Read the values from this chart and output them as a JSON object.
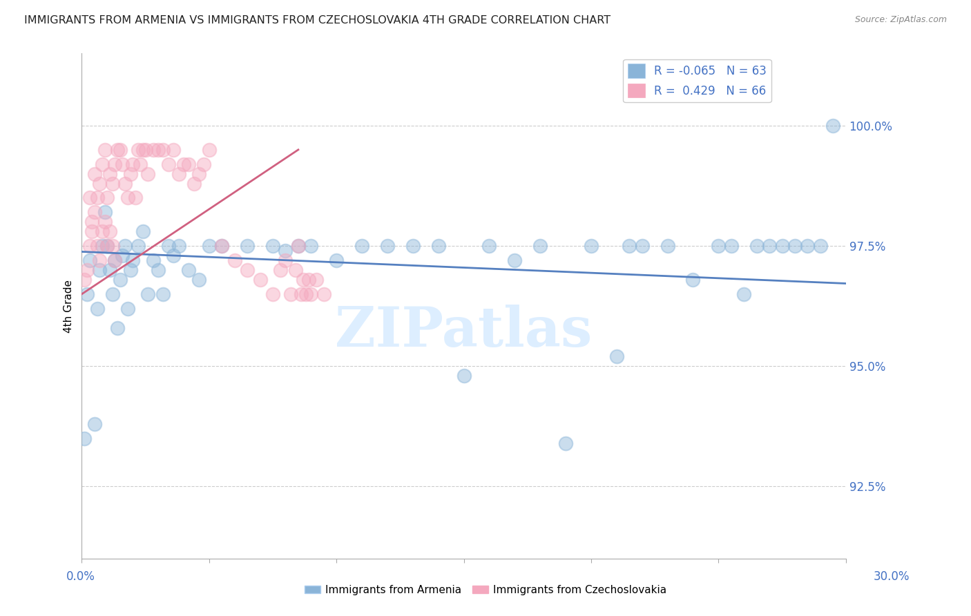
{
  "title": "IMMIGRANTS FROM ARMENIA VS IMMIGRANTS FROM CZECHOSLOVAKIA 4TH GRADE CORRELATION CHART",
  "source": "Source: ZipAtlas.com",
  "ylabel": "4th Grade",
  "xlim": [
    0.0,
    0.3
  ],
  "ylim": [
    91.0,
    101.5
  ],
  "ytick_positions": [
    92.5,
    95.0,
    97.5,
    100.0
  ],
  "ytick_labels": [
    "92.5%",
    "95.0%",
    "97.5%",
    "100.0%"
  ],
  "blue_color": "#8ab4d8",
  "pink_color": "#f4a8be",
  "blue_line_color": "#5580c0",
  "pink_line_color": "#d06080",
  "watermark_color": "#ddeeff",
  "background_color": "#ffffff",
  "grid_color": "#cccccc",
  "blue_line_x": [
    0.0,
    0.3
  ],
  "blue_line_y": [
    97.38,
    96.72
  ],
  "pink_line_x": [
    0.0,
    0.085
  ],
  "pink_line_y": [
    96.5,
    99.5
  ],
  "blue_scatter_x": [
    0.001,
    0.002,
    0.003,
    0.005,
    0.006,
    0.007,
    0.008,
    0.009,
    0.01,
    0.011,
    0.012,
    0.013,
    0.014,
    0.015,
    0.016,
    0.017,
    0.018,
    0.019,
    0.02,
    0.022,
    0.024,
    0.026,
    0.028,
    0.03,
    0.032,
    0.034,
    0.036,
    0.038,
    0.042,
    0.046,
    0.05,
    0.055,
    0.065,
    0.075,
    0.08,
    0.085,
    0.09,
    0.1,
    0.11,
    0.12,
    0.13,
    0.14,
    0.15,
    0.16,
    0.17,
    0.18,
    0.19,
    0.2,
    0.21,
    0.215,
    0.22,
    0.23,
    0.24,
    0.25,
    0.255,
    0.26,
    0.265,
    0.27,
    0.275,
    0.28,
    0.285,
    0.29,
    0.295
  ],
  "blue_scatter_y": [
    93.5,
    96.5,
    97.2,
    93.8,
    96.2,
    97.0,
    97.5,
    98.2,
    97.5,
    97.0,
    96.5,
    97.2,
    95.8,
    96.8,
    97.3,
    97.5,
    96.2,
    97.0,
    97.2,
    97.5,
    97.8,
    96.5,
    97.2,
    97.0,
    96.5,
    97.5,
    97.3,
    97.5,
    97.0,
    96.8,
    97.5,
    97.5,
    97.5,
    97.5,
    97.4,
    97.5,
    97.5,
    97.2,
    97.5,
    97.5,
    97.5,
    97.5,
    94.8,
    97.5,
    97.2,
    97.5,
    93.4,
    97.5,
    95.2,
    97.5,
    97.5,
    97.5,
    96.8,
    97.5,
    97.5,
    96.5,
    97.5,
    97.5,
    97.5,
    97.5,
    97.5,
    97.5,
    100.0
  ],
  "pink_scatter_x": [
    0.001,
    0.002,
    0.003,
    0.003,
    0.004,
    0.004,
    0.005,
    0.005,
    0.006,
    0.006,
    0.007,
    0.007,
    0.008,
    0.008,
    0.009,
    0.009,
    0.01,
    0.01,
    0.011,
    0.011,
    0.012,
    0.012,
    0.013,
    0.013,
    0.014,
    0.015,
    0.016,
    0.017,
    0.018,
    0.019,
    0.02,
    0.021,
    0.022,
    0.023,
    0.024,
    0.025,
    0.026,
    0.028,
    0.03,
    0.032,
    0.034,
    0.036,
    0.038,
    0.04,
    0.042,
    0.044,
    0.046,
    0.048,
    0.05,
    0.055,
    0.06,
    0.065,
    0.07,
    0.075,
    0.078,
    0.08,
    0.082,
    0.084,
    0.085,
    0.086,
    0.087,
    0.088,
    0.089,
    0.09,
    0.092,
    0.095
  ],
  "pink_scatter_y": [
    96.8,
    97.0,
    97.5,
    98.5,
    97.8,
    98.0,
    98.2,
    99.0,
    97.5,
    98.5,
    97.2,
    98.8,
    97.8,
    99.2,
    98.0,
    99.5,
    97.5,
    98.5,
    97.8,
    99.0,
    97.5,
    98.8,
    97.2,
    99.2,
    99.5,
    99.5,
    99.2,
    98.8,
    98.5,
    99.0,
    99.2,
    98.5,
    99.5,
    99.2,
    99.5,
    99.5,
    99.0,
    99.5,
    99.5,
    99.5,
    99.2,
    99.5,
    99.0,
    99.2,
    99.2,
    98.8,
    99.0,
    99.2,
    99.5,
    97.5,
    97.2,
    97.0,
    96.8,
    96.5,
    97.0,
    97.2,
    96.5,
    97.0,
    97.5,
    96.5,
    96.8,
    96.5,
    96.8,
    96.5,
    96.8,
    96.5
  ]
}
